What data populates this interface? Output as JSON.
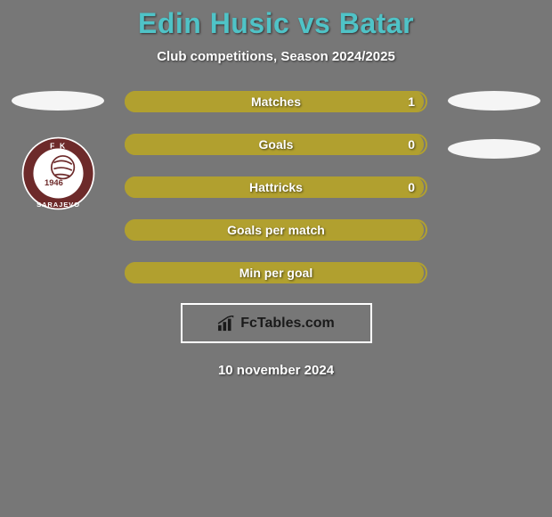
{
  "title": "Edin Husic vs Batar",
  "subtitle": "Club competitions, Season 2024/2025",
  "colors": {
    "background": "#777777",
    "title": "#4fc3c7",
    "subtitle": "#ffffff",
    "bar_fill": "#b1a02f",
    "bar_border": "#b1a02f",
    "placeholder": "#f5f5f5",
    "brand_border": "#ffffff",
    "brand_text": "#1a1a1a"
  },
  "stats": [
    {
      "label": "Matches",
      "value": "1",
      "fill_pct": 100
    },
    {
      "label": "Goals",
      "value": "0",
      "fill_pct": 100
    },
    {
      "label": "Hattricks",
      "value": "0",
      "fill_pct": 100
    },
    {
      "label": "Goals per match",
      "value": "",
      "fill_pct": 100
    },
    {
      "label": "Min per goal",
      "value": "",
      "fill_pct": 100
    }
  ],
  "left_side": {
    "has_placeholder": true,
    "club_badge": {
      "name": "FK Sarajevo",
      "year": "1946",
      "ring_color": "#6d2a2a",
      "inner_color": "#ffffff"
    }
  },
  "right_side": {
    "placeholder_count": 2
  },
  "brand": {
    "text": "FcTables.com"
  },
  "date": "10 november 2024"
}
